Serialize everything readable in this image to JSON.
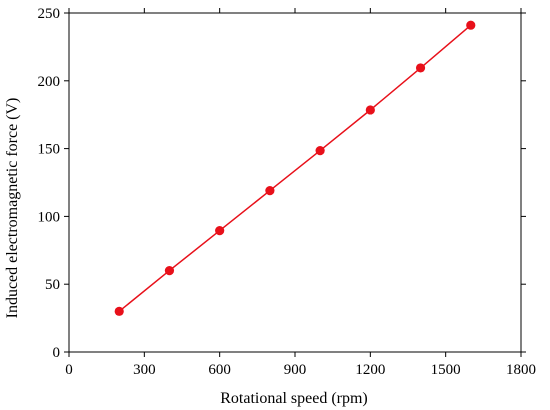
{
  "chart_data": {
    "type": "line",
    "title": "",
    "xlabel": "Rotational speed (rpm)",
    "ylabel": "Induced electromagnetic force (V)",
    "xlim": [
      0,
      1800
    ],
    "ylim": [
      0,
      250
    ],
    "xticks": [
      0,
      300,
      600,
      900,
      1200,
      1500,
      1800
    ],
    "yticks": [
      0,
      50,
      100,
      150,
      200,
      250
    ],
    "grid": false,
    "legend": "none",
    "series": [
      {
        "color": "#e8101a",
        "marker": "circle",
        "x": [
          200,
          400,
          600,
          800,
          1000,
          1200,
          1400,
          1600
        ],
        "y": [
          30,
          60,
          89.5,
          119,
          148.5,
          178.5,
          209.5,
          241
        ]
      }
    ]
  }
}
